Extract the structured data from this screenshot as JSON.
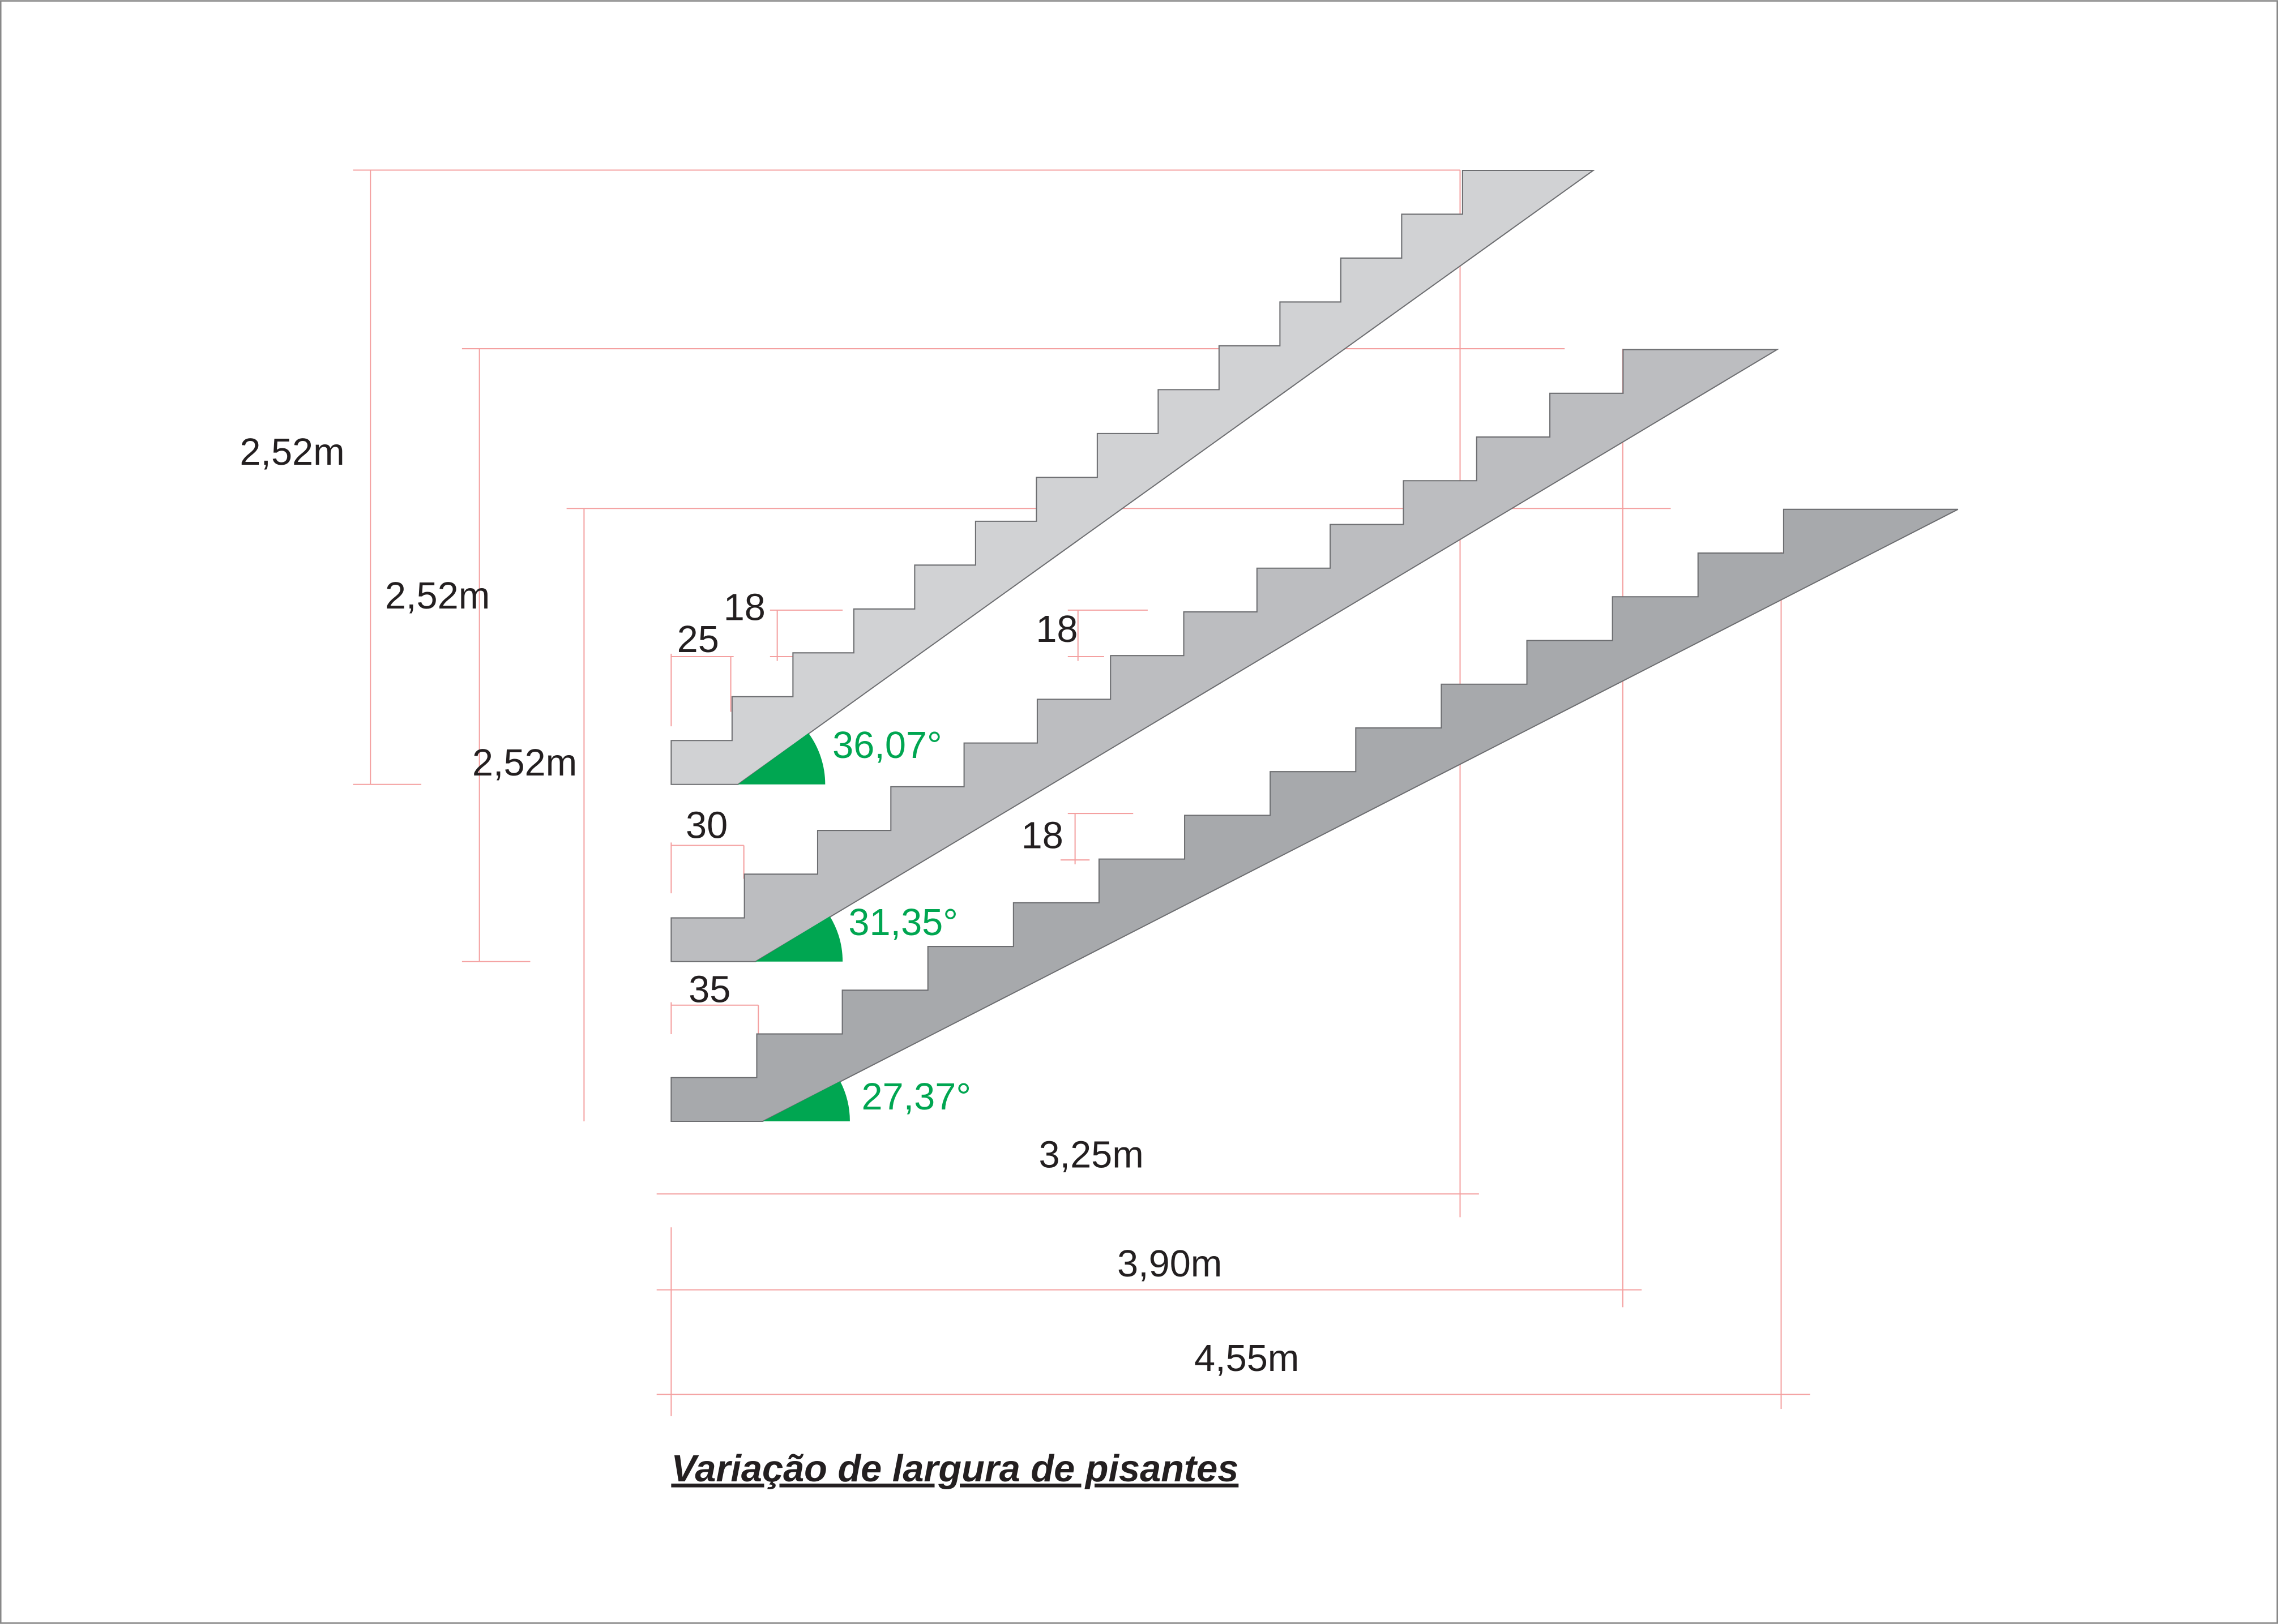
{
  "height_labels": [
    "2,52m",
    "2,52m",
    "2,52m"
  ],
  "riser_labels": [
    "18",
    "18",
    "18"
  ],
  "tread_labels": [
    "25",
    "30",
    "35"
  ],
  "angle_labels": [
    "36,07°",
    "31,35°",
    "27,37°"
  ],
  "length_labels": [
    "3,25m",
    "3,90m",
    "4,55m"
  ],
  "caption": "Variação de largura de pisantes"
}
